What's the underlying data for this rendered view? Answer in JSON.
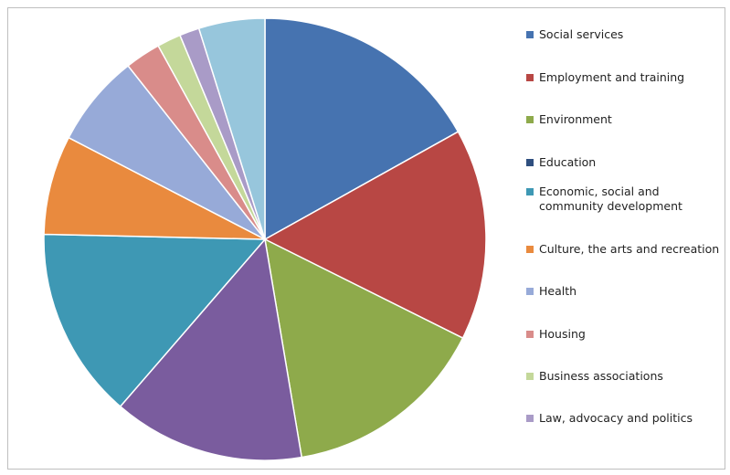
{
  "chart_data": {
    "type": "pie",
    "title": "",
    "slices": [
      {
        "label": "Social services",
        "value": 17.5,
        "color": "#4673B0"
      },
      {
        "label": "Employment and training",
        "value": 16.0,
        "color": "#B84744"
      },
      {
        "label": "Environment",
        "value": 15.5,
        "color": "#8EAA4B"
      },
      {
        "label": "Education",
        "value": 14.5,
        "color": "#7A5C9E"
      },
      {
        "label": "Economic, social and community development",
        "value": 14.5,
        "color": "#3E98B4"
      },
      {
        "label": "Culture, the arts and recreation",
        "value": 7.5,
        "color": "#E98A3E"
      },
      {
        "label": "Health",
        "value": 7.0,
        "color": "#97AAD8"
      },
      {
        "label": "Housing",
        "value": 2.7,
        "color": "#D98C8A"
      },
      {
        "label": "Business associations",
        "value": 1.8,
        "color": "#C4D89A"
      },
      {
        "label": "Law, advocacy and politics",
        "value": 1.5,
        "color": "#A99BC7"
      },
      {
        "label": "",
        "value": 5.0,
        "color": "#97C6DC"
      }
    ],
    "legend": {
      "placement": "right",
      "entries": [
        {
          "label": "Social services",
          "color": "#4673B0"
        },
        {
          "label": "Employment and training",
          "color": "#B84744"
        },
        {
          "label": "Environment",
          "color": "#8EAA4B"
        },
        {
          "label": "Education",
          "color": "#2F4F7F"
        },
        {
          "label": "Economic, social and community development",
          "color": "#3E98B4"
        },
        {
          "label": "Culture, the arts and recreation",
          "color": "#E98A3E"
        },
        {
          "label": "Health",
          "color": "#97AAD8"
        },
        {
          "label": "Housing",
          "color": "#D98C8A"
        },
        {
          "label": "Business associations",
          "color": "#C4D89A"
        },
        {
          "label": "Law, advocacy and politics",
          "color": "#A99BC7"
        }
      ]
    }
  }
}
